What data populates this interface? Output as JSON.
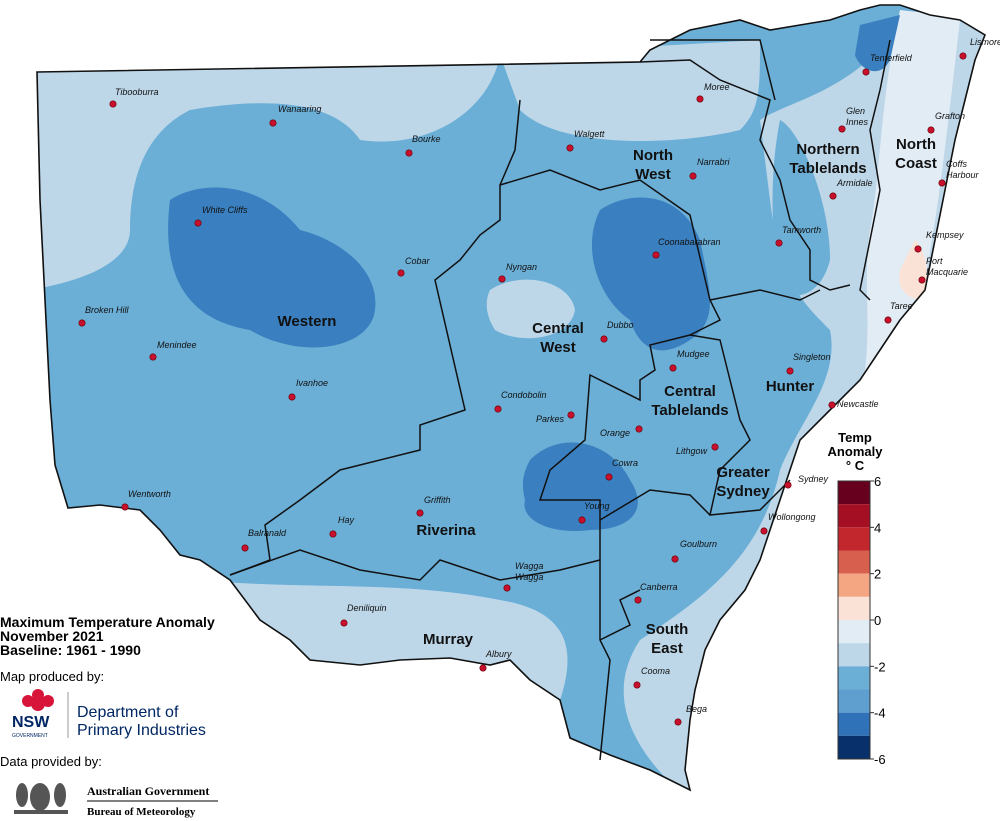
{
  "header": {
    "title_lines": [
      "Maximum Temperature Anomaly",
      "November 2021",
      "Baseline: 1961 - 1990"
    ]
  },
  "credits": {
    "produced_by": "Map produced by:",
    "nsw": "NSW",
    "government": "GOVERNMENT",
    "department_lines": [
      "Department of",
      "Primary Industries"
    ],
    "data_by": "Data provided by:",
    "agency": "Australian Government",
    "bureau": "Bureau of Meteorology"
  },
  "legend": {
    "title_lines": [
      "Temp",
      "Anomaly",
      "° C"
    ],
    "ticks": [
      6,
      4,
      2,
      0,
      -2,
      -4,
      -6
    ],
    "bins": [
      6,
      5,
      4,
      3,
      2,
      1,
      0,
      -1,
      -2,
      -3,
      -4,
      -5,
      -6
    ],
    "colors": [
      "#67001f",
      "#a50f24",
      "#c1272d",
      "#d6604d",
      "#f4a582",
      "#fbe2d6",
      "#e2ecf4",
      "#bdd7e9",
      "#6baed6",
      "#5f9fd0",
      "#2f72b7",
      "#08306b"
    ]
  },
  "regions": [
    [
      "Western"
    ],
    [
      "Central",
      "West"
    ],
    [
      "North",
      "West"
    ],
    [
      "Northern",
      "Tablelands"
    ],
    [
      "North",
      "Coast"
    ],
    [
      "Hunter"
    ],
    [
      "Central",
      "Tablelands"
    ],
    [
      "Greater",
      "Sydney"
    ],
    [
      "Riverina"
    ],
    [
      "Murray"
    ],
    [
      "South",
      "East"
    ]
  ],
  "towns": [
    [
      "Tibooburra"
    ],
    [
      "Wanaaring"
    ],
    [
      "Bourke"
    ],
    [
      "White Cliffs"
    ],
    [
      "Cobar"
    ],
    [
      "Nyngan"
    ],
    [
      "Broken Hill"
    ],
    [
      "Menindee"
    ],
    [
      "Ivanhoe"
    ],
    [
      "Wentworth"
    ],
    [
      "Balranald"
    ],
    [
      "Hay"
    ],
    [
      "Griffith"
    ],
    [
      "Deniliquin"
    ],
    [
      "Albury"
    ],
    [
      "Wagga",
      "Wagga"
    ],
    [
      "Young"
    ],
    [
      "Cowra"
    ],
    [
      "Condobolin"
    ],
    [
      "Parkes"
    ],
    [
      "Orange"
    ],
    [
      "Lithgow"
    ],
    [
      "Dubbo"
    ],
    [
      "Mudgee"
    ],
    [
      "Coonabarabran"
    ],
    [
      "Walgett"
    ],
    [
      "Moree"
    ],
    [
      "Narrabri"
    ],
    [
      "Tenterfield"
    ],
    [
      "Glen",
      "Innes"
    ],
    [
      "Armidale"
    ],
    [
      "Tamworth"
    ],
    [
      "Lismore"
    ],
    [
      "Grafton"
    ],
    [
      "Coffs",
      "Harbour"
    ],
    [
      "Kempsey"
    ],
    [
      "Port",
      "Macquarie"
    ],
    [
      "Taree"
    ],
    [
      "Singleton"
    ],
    [
      "Newcastle"
    ],
    [
      "Sydney"
    ],
    [
      "Wollongong"
    ],
    [
      "Goulburn"
    ],
    [
      "Canberra"
    ],
    [
      "Cooma"
    ],
    [
      "Bega"
    ]
  ]
}
